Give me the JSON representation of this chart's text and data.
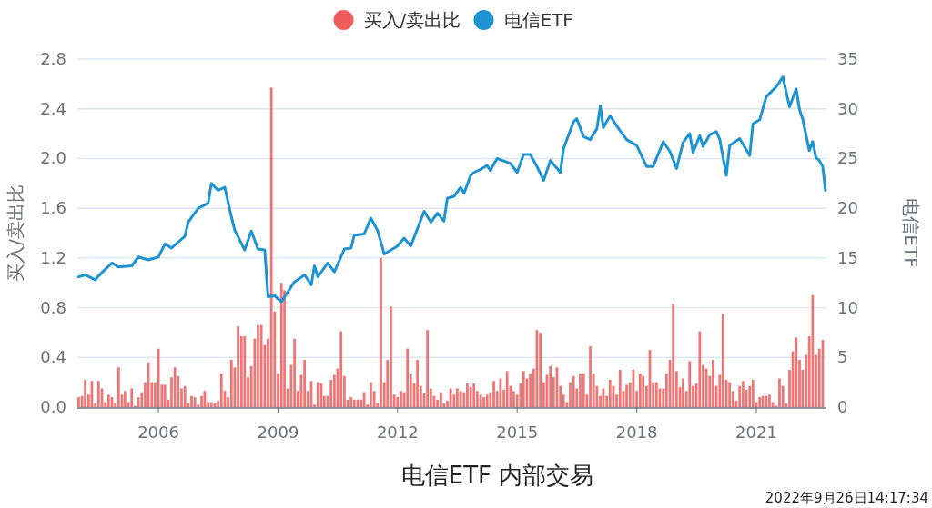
{
  "chart_data": {
    "type": "bar",
    "title": "电信ETF 内部交易",
    "ylabel": "买入/卖出比",
    "y2label": "电信ETF",
    "annotations": [
      "2022年9月26日14:17:34"
    ],
    "x": [
      "2004-01",
      "2004-02",
      "2004-03",
      "2004-04",
      "2004-05",
      "2004-06",
      "2004-07",
      "2004-08",
      "2004-09",
      "2004-10",
      "2004-11",
      "2004-12",
      "2005-01",
      "2005-02",
      "2005-03",
      "2005-04",
      "2005-05",
      "2005-06",
      "2005-07",
      "2005-08",
      "2005-09",
      "2005-10",
      "2005-11",
      "2005-12",
      "2006-01",
      "2006-02",
      "2006-03",
      "2006-04",
      "2006-05",
      "2006-06",
      "2006-07",
      "2006-08",
      "2006-09",
      "2006-10",
      "2006-11",
      "2006-12",
      "2007-01",
      "2007-02",
      "2007-03",
      "2007-04",
      "2007-05",
      "2007-06",
      "2007-07",
      "2007-08",
      "2007-09",
      "2007-10",
      "2007-11",
      "2007-12",
      "2008-01",
      "2008-02",
      "2008-03",
      "2008-04",
      "2008-05",
      "2008-06",
      "2008-07",
      "2008-08",
      "2008-09",
      "2008-10",
      "2008-11",
      "2008-12",
      "2009-01",
      "2009-02",
      "2009-03",
      "2009-04",
      "2009-05",
      "2009-06",
      "2009-07",
      "2009-08",
      "2009-09",
      "2009-10",
      "2009-11",
      "2009-12",
      "2010-01",
      "2010-02",
      "2010-03",
      "2010-04",
      "2010-05",
      "2010-06",
      "2010-07",
      "2010-08",
      "2010-09",
      "2010-10",
      "2010-11",
      "2010-12",
      "2011-01",
      "2011-02",
      "2011-03",
      "2011-04",
      "2011-05",
      "2011-06",
      "2011-07",
      "2011-08",
      "2011-09",
      "2011-10",
      "2011-11",
      "2011-12",
      "2012-01",
      "2012-02",
      "2012-03",
      "2012-04",
      "2012-05",
      "2012-06",
      "2012-07",
      "2012-08",
      "2012-09",
      "2012-10",
      "2012-11",
      "2012-12",
      "2013-01",
      "2013-02",
      "2013-03",
      "2013-04",
      "2013-05",
      "2013-06",
      "2013-07",
      "2013-08",
      "2013-09",
      "2013-10",
      "2013-11",
      "2013-12",
      "2014-01",
      "2014-02",
      "2014-03",
      "2014-04",
      "2014-05",
      "2014-06",
      "2014-07",
      "2014-08",
      "2014-09",
      "2014-10",
      "2014-11",
      "2014-12",
      "2015-01",
      "2015-02",
      "2015-03",
      "2015-04",
      "2015-05",
      "2015-06",
      "2015-07",
      "2015-08",
      "2015-09",
      "2015-10",
      "2015-11",
      "2015-12",
      "2016-01",
      "2016-02",
      "2016-03",
      "2016-04",
      "2016-05",
      "2016-06",
      "2016-07",
      "2016-08",
      "2016-09",
      "2016-10",
      "2016-11",
      "2016-12",
      "2017-01",
      "2017-02",
      "2017-03",
      "2017-04",
      "2017-05",
      "2017-06",
      "2017-07",
      "2017-08",
      "2017-09",
      "2017-10",
      "2017-11",
      "2017-12",
      "2018-01",
      "2018-02",
      "2018-03",
      "2018-04",
      "2018-05",
      "2018-06",
      "2018-07",
      "2018-08",
      "2018-09",
      "2018-10",
      "2018-11",
      "2018-12",
      "2019-01",
      "2019-02",
      "2019-03",
      "2019-04",
      "2019-05",
      "2019-06",
      "2019-07",
      "2019-08",
      "2019-09",
      "2019-10",
      "2019-11",
      "2019-12",
      "2020-01",
      "2020-02",
      "2020-03",
      "2020-04",
      "2020-05",
      "2020-06",
      "2020-07",
      "2020-08",
      "2020-09",
      "2020-10",
      "2020-11",
      "2020-12",
      "2021-01",
      "2021-02",
      "2021-03",
      "2021-04",
      "2021-05",
      "2021-06",
      "2021-07",
      "2021-08",
      "2021-09",
      "2021-10",
      "2021-11",
      "2021-12",
      "2022-01",
      "2022-02",
      "2022-03",
      "2022-04",
      "2022-05",
      "2022-06",
      "2022-07",
      "2022-08",
      "2022-09"
    ],
    "series": [
      {
        "name": "买入/卖出比",
        "color": "#ee5c5c",
        "values": [
          0.08,
          0.09,
          0.22,
          0.1,
          0.21,
          0.03,
          0.21,
          0.15,
          0.04,
          0.1,
          0.08,
          0.03,
          0.32,
          0.1,
          0.13,
          0.04,
          0.15,
          0.01,
          0.08,
          0.12,
          0.2,
          0.36,
          0.2,
          0.2,
          0.47,
          0.18,
          0.18,
          0.06,
          0.24,
          0.32,
          0.25,
          0.15,
          0.17,
          0.03,
          0.09,
          0.08,
          0.02,
          0.09,
          0.13,
          0.04,
          0.04,
          0.03,
          0.05,
          0.27,
          0.13,
          0.08,
          0.38,
          0.32,
          0.65,
          0.57,
          0.57,
          0.24,
          0.33,
          0.55,
          0.66,
          0.66,
          0.5,
          0.55,
          2.57,
          0.77,
          0.27,
          1.0,
          0.94,
          0.15,
          0.34,
          0.55,
          0.13,
          0.26,
          0.38,
          0.13,
          0.21,
          0.02,
          0.2,
          0.19,
          0.09,
          0.09,
          0.22,
          0.26,
          0.31,
          0.61,
          0.25,
          0.06,
          0.08,
          0.06,
          0.06,
          0.06,
          0.12,
          0.02,
          0.2,
          0.13,
          0.03,
          1.2,
          0.2,
          0.38,
          0.81,
          0.1,
          0.08,
          0.13,
          0.12,
          0.47,
          0.27,
          0.19,
          0.38,
          0.17,
          0.11,
          0.62,
          0.15,
          0.09,
          0.06,
          0.12,
          0.03,
          0.05,
          0.15,
          0.1,
          0.15,
          0.13,
          0.12,
          0.19,
          0.16,
          0.19,
          0.13,
          0.1,
          0.08,
          0.1,
          0.12,
          0.21,
          0.13,
          0.23,
          0.14,
          0.29,
          0.17,
          0.13,
          0.1,
          0.19,
          0.29,
          0.23,
          0.27,
          0.31,
          0.62,
          0.6,
          0.2,
          0.26,
          0.33,
          0.24,
          0.32,
          0.17,
          0.1,
          0.04,
          0.2,
          0.25,
          0.15,
          0.27,
          0.27,
          0.1,
          0.49,
          0.27,
          0.17,
          0.09,
          0.15,
          0.09,
          0.22,
          0.17,
          0.1,
          0.3,
          0.13,
          0.18,
          0.2,
          0.3,
          0.13,
          0.27,
          0.25,
          0.17,
          0.46,
          0.2,
          0.2,
          0.15,
          0.15,
          0.27,
          0.38,
          0.83,
          0.29,
          0.16,
          0.23,
          0.13,
          0.37,
          0.17,
          0.19,
          0.61,
          0.34,
          0.31,
          0.25,
          0.38,
          0.17,
          0.26,
          0.75,
          0.22,
          0.2,
          0.13,
          0.05,
          0.17,
          0.21,
          0.14,
          0.17,
          0.22,
          0.04,
          0.08,
          0.09,
          0.09,
          0.1,
          0.04,
          0.01,
          0.23,
          0.17,
          0.03,
          0.3,
          0.45,
          0.56,
          0.38,
          0.3,
          0.42,
          0.57,
          0.9,
          0.42,
          0.47,
          0.54
        ]
      },
      {
        "name": "电信ETF",
        "type": "line",
        "axis": "y2",
        "color": "#1f93d1",
        "x": [
          "2004-01",
          "2004-03",
          "2004-06",
          "2004-07",
          "2004-11",
          "2005-01",
          "2005-05",
          "2005-07",
          "2005-10",
          "2006-01",
          "2006-03",
          "2006-05",
          "2006-09",
          "2006-10",
          "2007-01",
          "2007-04",
          "2007-05",
          "2007-07",
          "2007-09",
          "2007-11",
          "2007-12",
          "2008-03",
          "2008-05",
          "2008-07",
          "2008-09",
          "2008-10",
          "2008-12",
          "2009-02",
          "2009-05",
          "2009-06",
          "2009-09",
          "2009-11",
          "2009-12",
          "2010-01",
          "2010-04",
          "2010-06",
          "2010-09",
          "2010-11",
          "2010-12",
          "2011-03",
          "2011-05",
          "2011-07",
          "2011-09",
          "2012-01",
          "2012-03",
          "2012-05",
          "2012-09",
          "2012-11",
          "2013-01",
          "2013-03",
          "2013-04",
          "2013-06",
          "2013-08",
          "2013-09",
          "2013-11",
          "2013-12",
          "2014-02",
          "2014-04",
          "2014-05",
          "2014-07",
          "2014-11",
          "2015-01",
          "2015-03",
          "2015-05",
          "2015-07",
          "2015-09",
          "2015-11",
          "2016-02",
          "2016-03",
          "2016-06",
          "2016-07",
          "2016-09",
          "2016-11",
          "2017-01",
          "2017-02",
          "2017-03",
          "2017-05",
          "2017-08",
          "2017-10",
          "2018-01",
          "2018-04",
          "2018-06",
          "2018-09",
          "2018-11",
          "2019-01",
          "2019-03",
          "2019-05",
          "2019-06",
          "2019-08",
          "2019-09",
          "2019-11",
          "2020-01",
          "2020-02",
          "2020-04",
          "2020-05",
          "2020-08",
          "2020-11",
          "2020-12",
          "2021-02",
          "2021-04",
          "2021-07",
          "2021-09",
          "2021-11",
          "2022-01",
          "2022-02",
          "2022-03",
          "2022-05",
          "2022-06",
          "2022-07",
          "2022-08",
          "2022-09",
          "2022-09-26"
        ],
        "values": [
          13.1,
          13.3,
          12.8,
          13.2,
          14.5,
          14.1,
          14.2,
          15.1,
          14.8,
          15.1,
          16.4,
          16.0,
          17.2,
          18.6,
          20.0,
          20.5,
          22.5,
          21.8,
          22.1,
          19.1,
          17.8,
          15.8,
          17.7,
          15.9,
          15.8,
          11.1,
          11.2,
          10.6,
          12.1,
          12.6,
          13.3,
          12.3,
          14.2,
          13.1,
          14.5,
          13.6,
          15.9,
          16.0,
          17.3,
          17.4,
          19.0,
          17.8,
          15.4,
          16.2,
          17.0,
          16.2,
          19.7,
          18.6,
          19.5,
          18.7,
          21.0,
          21.2,
          22.1,
          21.5,
          23.3,
          23.6,
          23.9,
          24.3,
          23.8,
          25.0,
          24.5,
          23.6,
          25.4,
          25.4,
          24.2,
          22.8,
          24.8,
          23.6,
          26.0,
          28.7,
          29.0,
          27.2,
          26.9,
          28.0,
          30.3,
          28.1,
          29.3,
          27.8,
          26.9,
          26.3,
          24.2,
          24.2,
          26.7,
          25.7,
          24.0,
          26.6,
          27.5,
          25.6,
          27.3,
          26.2,
          27.4,
          27.7,
          26.9,
          23.3,
          26.3,
          27.0,
          25.3,
          28.5,
          28.9,
          31.2,
          32.2,
          33.2,
          30.2,
          32.0,
          29.9,
          29.0,
          25.8,
          26.7,
          25.1,
          24.8,
          24.2,
          21.8
        ]
      }
    ],
    "xlim": [
      "2003-12-20",
      "2022-10-05"
    ],
    "xticks": [
      "2006",
      "2009",
      "2012",
      "2015",
      "2018",
      "2021"
    ],
    "ylim": [
      0,
      2.8
    ],
    "yticks": [
      {
        "value": 0,
        "label": "0.0"
      },
      {
        "value": 0.4,
        "label": "0.4"
      },
      {
        "value": 0.8,
        "label": "0.8"
      },
      {
        "value": 1.2,
        "label": "1.2"
      },
      {
        "value": 1.6,
        "label": "1.6"
      },
      {
        "value": 2.0,
        "label": "2.0"
      },
      {
        "value": 2.4,
        "label": "2.4"
      },
      {
        "value": 2.8,
        "label": "2.8"
      }
    ],
    "y2lim": [
      0,
      35
    ],
    "y2ticks": [
      0,
      5,
      10,
      15,
      20,
      25,
      30,
      35
    ],
    "grid": "y",
    "legend": "top"
  }
}
